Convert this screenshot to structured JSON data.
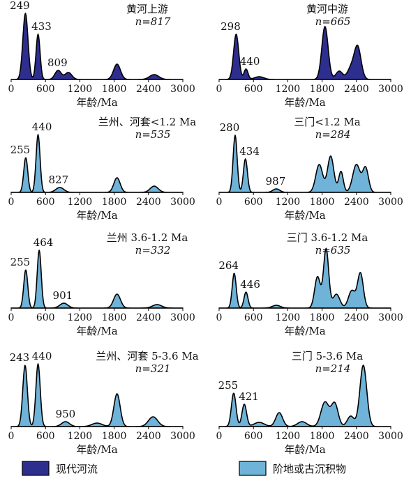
{
  "chart_data": [
    {
      "type": "area",
      "title": "黄河上游",
      "n_label": "n=817",
      "xlabel": "年龄/Ma",
      "xlim": [
        0,
        3000
      ],
      "xticks": [
        0,
        600,
        1200,
        1800,
        2400,
        3000
      ],
      "series_type": "modern",
      "peaks": [
        {
          "x": 249,
          "label": "249",
          "h": 0.95
        },
        {
          "x": 433,
          "label": "433",
          "h": 0.65
        },
        {
          "x": 809,
          "label": "809",
          "h": 0.13
        }
      ],
      "components": [
        {
          "mu": 249,
          "sigma": 45,
          "a": 0.95
        },
        {
          "mu": 470,
          "sigma": 35,
          "a": 0.65
        },
        {
          "mu": 820,
          "sigma": 55,
          "a": 0.13
        },
        {
          "mu": 1000,
          "sigma": 60,
          "a": 0.1
        },
        {
          "mu": 1850,
          "sigma": 60,
          "a": 0.22
        },
        {
          "mu": 2500,
          "sigma": 80,
          "a": 0.07
        }
      ]
    },
    {
      "type": "area",
      "title": "黄河中游",
      "n_label": "n=665",
      "xlabel": "年龄/Ma",
      "xlim": [
        0,
        3000
      ],
      "xticks": [
        0,
        600,
        1200,
        1800,
        2400,
        3000
      ],
      "series_type": "modern",
      "peaks": [
        {
          "x": 298,
          "label": "298",
          "h": 0.65
        },
        {
          "x": 440,
          "label": "440",
          "h": 0.15
        }
      ],
      "components": [
        {
          "mu": 298,
          "sigma": 45,
          "a": 0.65
        },
        {
          "mu": 470,
          "sigma": 35,
          "a": 0.15
        },
        {
          "mu": 700,
          "sigma": 80,
          "a": 0.04
        },
        {
          "mu": 1850,
          "sigma": 55,
          "a": 0.76
        },
        {
          "mu": 2100,
          "sigma": 60,
          "a": 0.12
        },
        {
          "mu": 2420,
          "sigma": 60,
          "a": 0.47
        },
        {
          "mu": 2300,
          "sigma": 60,
          "a": 0.15
        }
      ]
    },
    {
      "type": "area",
      "title": "兰州、河套<1.2 Ma",
      "n_label": "n=535",
      "xlabel": "年龄/Ma",
      "xlim": [
        0,
        3000
      ],
      "xticks": [
        0,
        600,
        1200,
        1800,
        2400,
        3000
      ],
      "series_type": "terrace",
      "peaks": [
        {
          "x": 255,
          "label": "255",
          "h": 0.5
        },
        {
          "x": 440,
          "label": "440",
          "h": 0.83
        },
        {
          "x": 827,
          "label": "827",
          "h": 0.07
        }
      ],
      "components": [
        {
          "mu": 255,
          "sigma": 35,
          "a": 0.5
        },
        {
          "mu": 470,
          "sigma": 35,
          "a": 0.83
        },
        {
          "mu": 850,
          "sigma": 70,
          "a": 0.07
        },
        {
          "mu": 1850,
          "sigma": 55,
          "a": 0.21
        },
        {
          "mu": 2500,
          "sigma": 70,
          "a": 0.09
        }
      ]
    },
    {
      "type": "area",
      "title": "三门<1.2 Ma",
      "n_label": "n=284",
      "xlabel": "年龄/Ma",
      "xlim": [
        0,
        3000
      ],
      "xticks": [
        0,
        600,
        1200,
        1800,
        2400,
        3000
      ],
      "series_type": "terrace",
      "peaks": [
        {
          "x": 280,
          "label": "280",
          "h": 0.82
        },
        {
          "x": 434,
          "label": "434",
          "h": 0.48
        },
        {
          "x": 987,
          "label": "987",
          "h": 0.05
        }
      ],
      "components": [
        {
          "mu": 280,
          "sigma": 35,
          "a": 0.82
        },
        {
          "mu": 460,
          "sigma": 35,
          "a": 0.48
        },
        {
          "mu": 1000,
          "sigma": 60,
          "a": 0.05
        },
        {
          "mu": 1750,
          "sigma": 60,
          "a": 0.4
        },
        {
          "mu": 1950,
          "sigma": 55,
          "a": 0.52
        },
        {
          "mu": 2130,
          "sigma": 40,
          "a": 0.3
        },
        {
          "mu": 2400,
          "sigma": 65,
          "a": 0.4
        },
        {
          "mu": 2560,
          "sigma": 50,
          "a": 0.35
        }
      ]
    },
    {
      "type": "area",
      "title": "兰州 3.6-1.2 Ma",
      "n_label": "n=332",
      "xlabel": "年龄/Ma",
      "xlim": [
        0,
        3000
      ],
      "xticks": [
        0,
        600,
        1200,
        1800,
        2400,
        3000
      ],
      "series_type": "terrace",
      "peaks": [
        {
          "x": 255,
          "label": "255",
          "h": 0.55
        },
        {
          "x": 464,
          "label": "464",
          "h": 0.83
        },
        {
          "x": 901,
          "label": "901",
          "h": 0.07
        }
      ],
      "components": [
        {
          "mu": 255,
          "sigma": 35,
          "a": 0.55
        },
        {
          "mu": 490,
          "sigma": 35,
          "a": 0.83
        },
        {
          "mu": 920,
          "sigma": 70,
          "a": 0.07
        },
        {
          "mu": 1850,
          "sigma": 60,
          "a": 0.2
        },
        {
          "mu": 2550,
          "sigma": 80,
          "a": 0.05
        }
      ]
    },
    {
      "type": "area",
      "title": "三门 3.6-1.2 Ma",
      "n_label": "n=635",
      "xlabel": "年龄/Ma",
      "xlim": [
        0,
        3000
      ],
      "xticks": [
        0,
        600,
        1200,
        1800,
        2400,
        3000
      ],
      "series_type": "terrace",
      "peaks": [
        {
          "x": 264,
          "label": "264",
          "h": 0.5
        },
        {
          "x": 446,
          "label": "446",
          "h": 0.23
        }
      ],
      "components": [
        {
          "mu": 264,
          "sigma": 35,
          "a": 0.5
        },
        {
          "mu": 470,
          "sigma": 35,
          "a": 0.23
        },
        {
          "mu": 1000,
          "sigma": 70,
          "a": 0.04
        },
        {
          "mu": 1720,
          "sigma": 50,
          "a": 0.45
        },
        {
          "mu": 1870,
          "sigma": 45,
          "a": 0.85
        },
        {
          "mu": 2050,
          "sigma": 60,
          "a": 0.2
        },
        {
          "mu": 2320,
          "sigma": 60,
          "a": 0.25
        },
        {
          "mu": 2470,
          "sigma": 50,
          "a": 0.5
        }
      ]
    },
    {
      "type": "area",
      "title": "兰州、河套 5-3.6 Ma",
      "n_label": "n=321",
      "xlabel": "年龄/Ma",
      "xlim": [
        0,
        3000
      ],
      "xticks": [
        0,
        600,
        1200,
        1800,
        2400,
        3000
      ],
      "series_type": "terrace",
      "peaks": [
        {
          "x": 243,
          "label": "243",
          "h": 0.88
        },
        {
          "x": 440,
          "label": "440",
          "h": 0.9
        },
        {
          "x": 950,
          "label": "950",
          "h": 0.07
        }
      ],
      "components": [
        {
          "mu": 243,
          "sigma": 40,
          "a": 0.88
        },
        {
          "mu": 470,
          "sigma": 38,
          "a": 0.9
        },
        {
          "mu": 950,
          "sigma": 70,
          "a": 0.07
        },
        {
          "mu": 1500,
          "sigma": 90,
          "a": 0.05
        },
        {
          "mu": 1850,
          "sigma": 55,
          "a": 0.47
        },
        {
          "mu": 2480,
          "sigma": 80,
          "a": 0.14
        }
      ]
    },
    {
      "type": "area",
      "title": "三门 5-3.6 Ma",
      "n_label": "n=214",
      "xlabel": "年龄/Ma",
      "xlim": [
        0,
        3000
      ],
      "xticks": [
        0,
        600,
        1200,
        1800,
        2400,
        3000
      ],
      "series_type": "terrace",
      "peaks": [
        {
          "x": 255,
          "label": "255",
          "h": 0.48
        },
        {
          "x": 421,
          "label": "421",
          "h": 0.32
        }
      ],
      "components": [
        {
          "mu": 255,
          "sigma": 40,
          "a": 0.48
        },
        {
          "mu": 440,
          "sigma": 40,
          "a": 0.32
        },
        {
          "mu": 700,
          "sigma": 90,
          "a": 0.06
        },
        {
          "mu": 1050,
          "sigma": 60,
          "a": 0.2
        },
        {
          "mu": 1450,
          "sigma": 80,
          "a": 0.07
        },
        {
          "mu": 1850,
          "sigma": 70,
          "a": 0.35
        },
        {
          "mu": 2020,
          "sigma": 60,
          "a": 0.33
        },
        {
          "mu": 2300,
          "sigma": 60,
          "a": 0.15
        },
        {
          "mu": 2520,
          "sigma": 60,
          "a": 0.88
        }
      ]
    }
  ],
  "legend": {
    "items": [
      {
        "key": "modern",
        "label": "现代河流",
        "color": "#2e2e8f"
      },
      {
        "key": "terrace",
        "label": "阶地或古沉积物",
        "color": "#6fb3d8"
      }
    ]
  },
  "colors": {
    "modern": "#2e2e8f",
    "terrace": "#6fb3d8",
    "stroke": "#000000"
  }
}
